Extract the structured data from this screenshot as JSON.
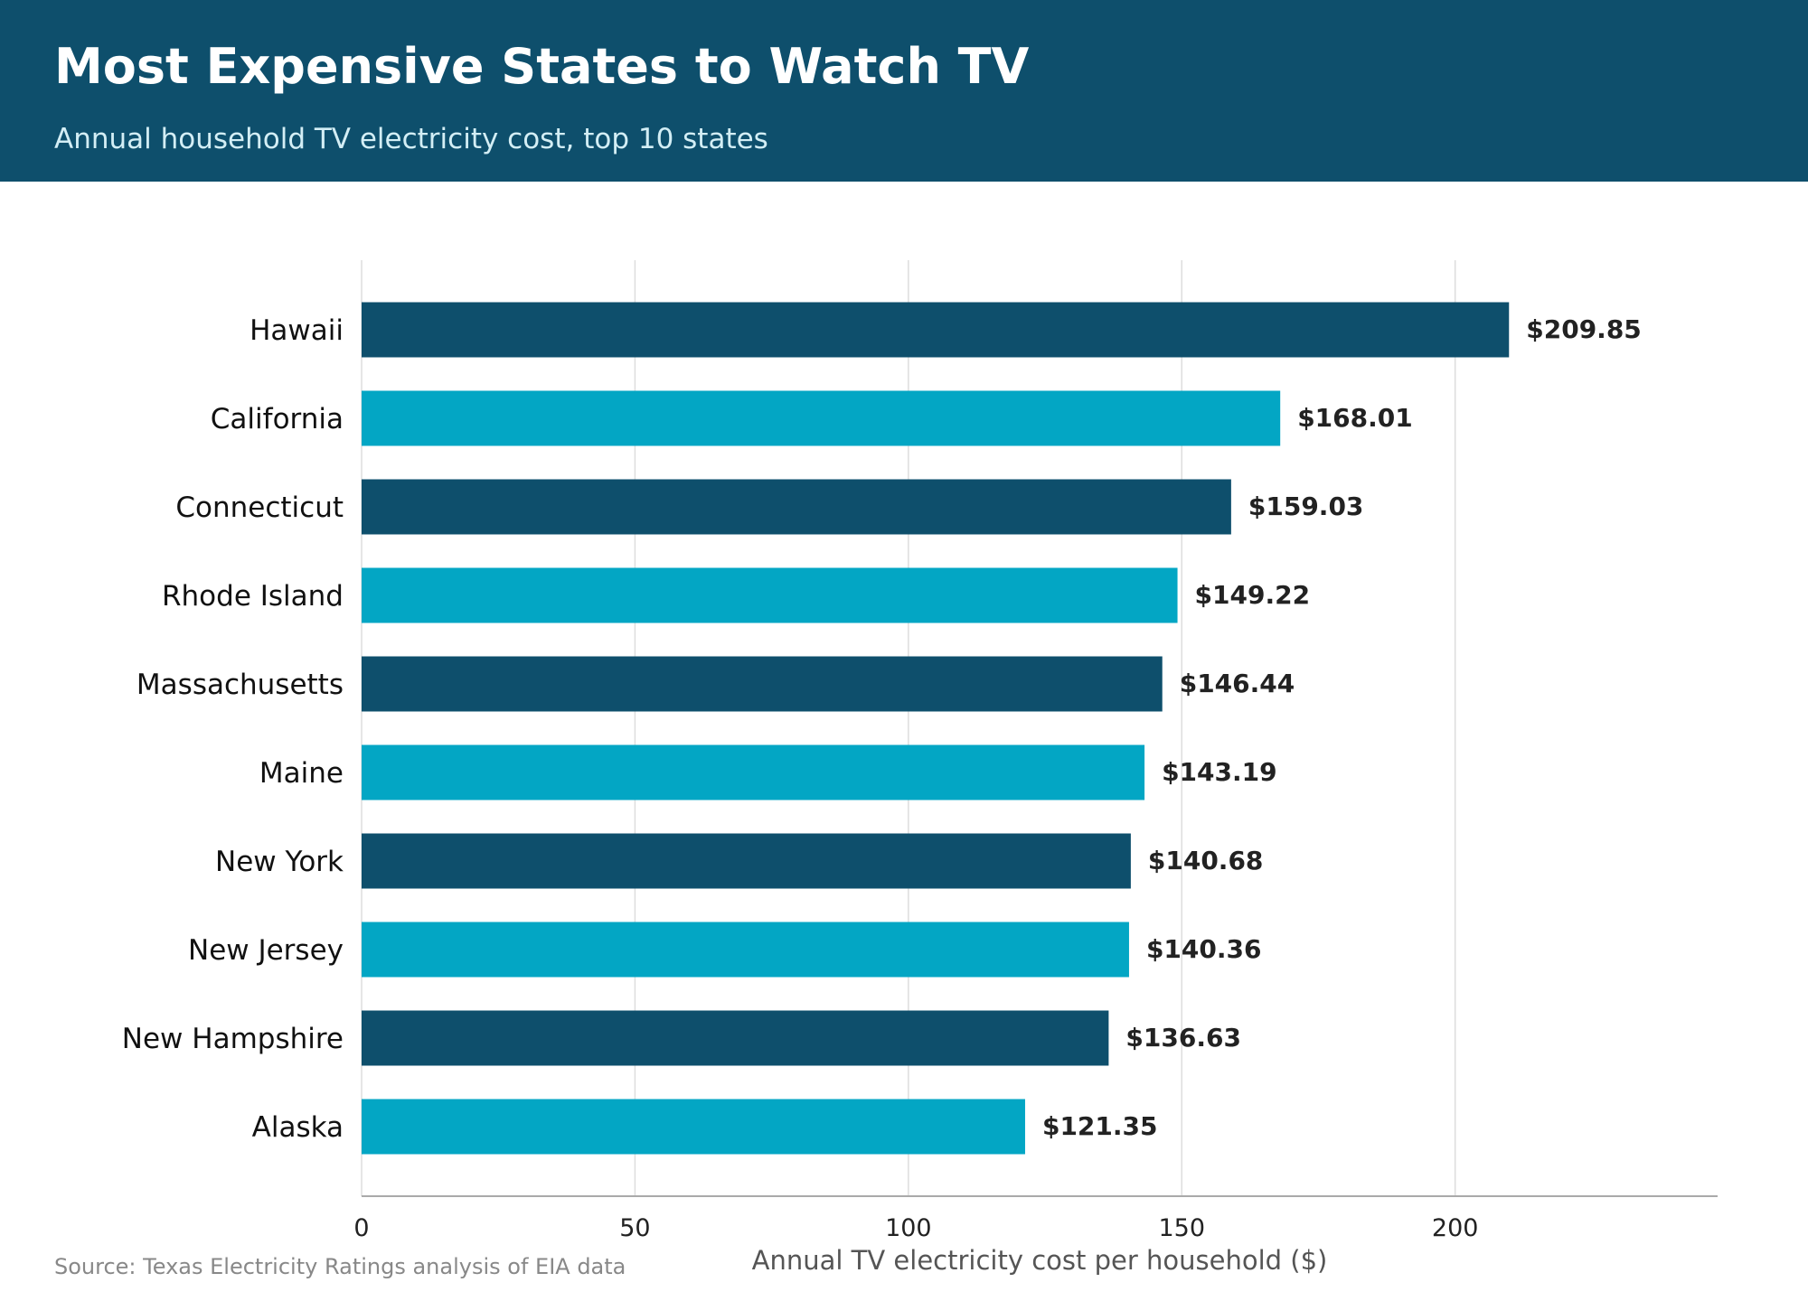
{
  "header": {
    "title": "Most Expensive States to Watch TV",
    "subtitle": "Annual household TV electricity cost, top 10 states",
    "background_color": "#0e4f6c"
  },
  "footer": {
    "source": "Source: Texas Electricity Ratings analysis of EIA data"
  },
  "chart_data": {
    "type": "bar",
    "orientation": "horizontal",
    "title": "Most Expensive States to Watch TV",
    "subtitle": "Annual household TV electricity cost, top 10 states",
    "xlabel": "Annual TV electricity cost per household ($)",
    "ylabel": "",
    "xlim": [
      0,
      248
    ],
    "xticks": [
      0,
      50,
      100,
      150,
      200
    ],
    "grid": "vertical",
    "categories": [
      "Hawaii",
      "California",
      "Connecticut",
      "Rhode Island",
      "Massachusetts",
      "Maine",
      "New York",
      "New Jersey",
      "New Hampshire",
      "Alaska"
    ],
    "values": [
      209.85,
      168.01,
      159.03,
      149.22,
      146.44,
      143.19,
      140.68,
      140.36,
      136.63,
      121.35
    ],
    "value_labels": [
      "$209.85",
      "$168.01",
      "$159.03",
      "$149.22",
      "$146.44",
      "$143.19",
      "$140.68",
      "$140.36",
      "$136.63",
      "$121.35"
    ],
    "colors": [
      "#0e4f6c",
      "#03a6c4"
    ],
    "grid_color": "#dddddd",
    "axis_color": "#aaaaaa"
  }
}
